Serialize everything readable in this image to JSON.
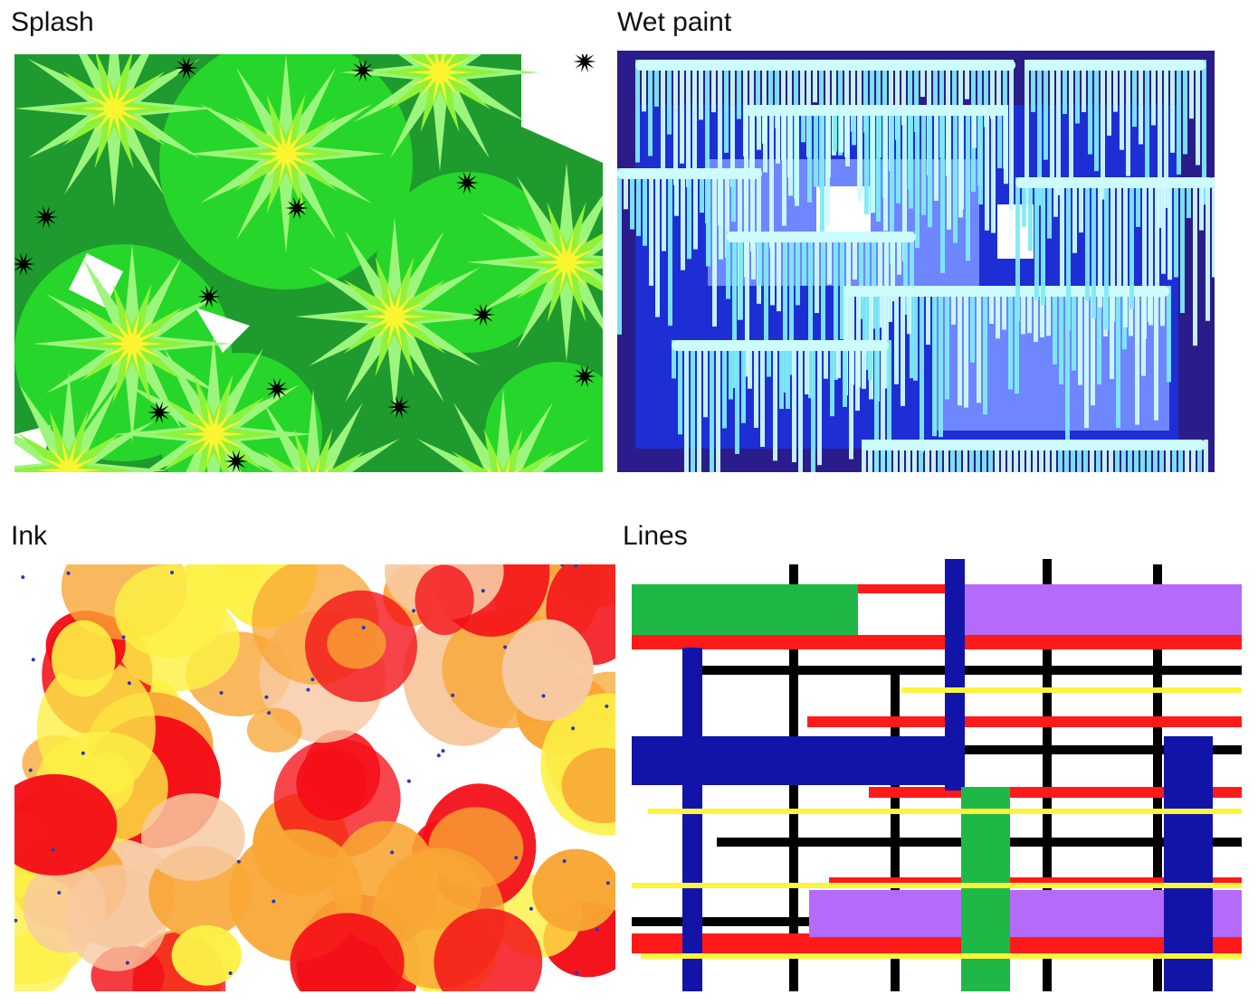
{
  "titles": {
    "splash": "Splash",
    "wet_paint": "Wet paint",
    "ink": "Ink",
    "lines": "Lines"
  },
  "colors": {
    "splash": {
      "bg": "#1f9a2e",
      "mid": "#27d62a",
      "light": "#9cf57c",
      "lime": "#8ef23a",
      "yellow": "#fbf530",
      "dark": "#000000"
    },
    "wet_paint": {
      "navy": "#2a1c8a",
      "blue": "#1d2fd4",
      "periwinkle": "#6e86ff",
      "cyan": "#7feaf5",
      "pale": "#cdfcfc"
    },
    "ink": {
      "red": "#f40f17",
      "orange": "#f8a634",
      "yellow": "#fdf045",
      "peach": "#f7c9a2",
      "blue": "#2a37b8"
    },
    "lines": {
      "black": "#000000",
      "red": "#ff1a1a",
      "blue": "#1214a8",
      "green": "#1fb847",
      "violet": "#b46bfa",
      "yellow": "#fdf53a"
    }
  }
}
